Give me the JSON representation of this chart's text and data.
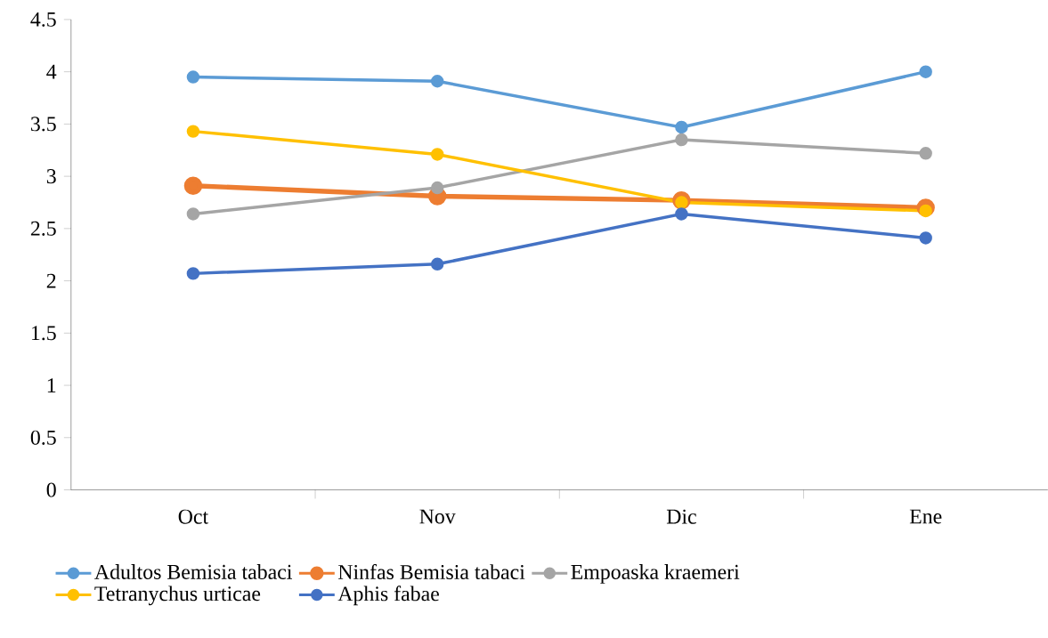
{
  "chart_data": {
    "type": "line",
    "categories": [
      "Oct",
      "Nov",
      "Dic",
      "Ene"
    ],
    "series": [
      {
        "name": "Adultos Bemisia tabaci",
        "color": "#5b9bd5",
        "values": [
          3.95,
          3.91,
          3.47,
          4.0
        ]
      },
      {
        "name": "Ninfas Bemisia tabaci",
        "color": "#ed7d31",
        "values": [
          2.91,
          2.81,
          2.77,
          2.7
        ]
      },
      {
        "name": "Empoaska kraemeri",
        "color": "#a5a5a5",
        "values": [
          2.64,
          2.89,
          3.35,
          3.22
        ]
      },
      {
        "name": "Tetranychus urticae",
        "color": "#ffc000",
        "values": [
          3.43,
          3.21,
          2.75,
          2.67
        ]
      },
      {
        "name": "Aphis fabae",
        "color": "#4472c4",
        "values": [
          2.07,
          2.16,
          2.64,
          2.41
        ]
      }
    ],
    "ylim": [
      0,
      4.5
    ],
    "yticks": [
      0,
      0.5,
      1,
      1.5,
      2,
      2.5,
      3,
      3.5,
      4,
      4.5
    ],
    "legend": "bottom",
    "marker": "circle",
    "line_style": "solid",
    "grid": false
  }
}
